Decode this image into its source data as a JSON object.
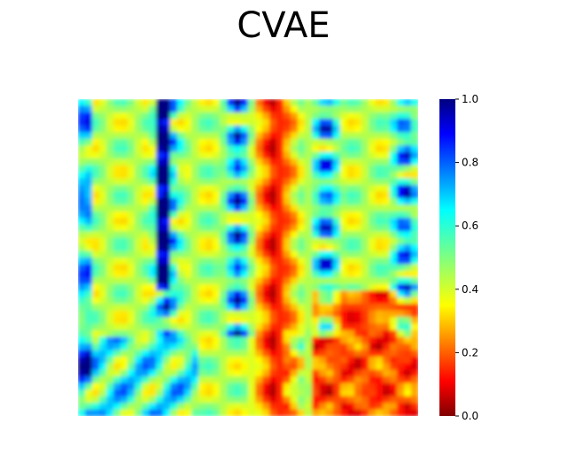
{
  "chart_data": {
    "type": "heatmap",
    "title": "CVAE",
    "xlabel": "",
    "ylabel": "",
    "colormap": "jet",
    "axes_visible": false,
    "colorbar": {
      "placement": "right",
      "range": [
        0.0,
        1.0
      ],
      "ticks": [
        0.0,
        0.2,
        0.4,
        0.6,
        0.8,
        1.0
      ],
      "tick_labels": [
        "0.0",
        "0.2",
        "0.4",
        "0.6",
        "0.8",
        "1.0"
      ]
    },
    "grid_size": [
      48,
      48
    ],
    "description_of_pattern": ""
  }
}
